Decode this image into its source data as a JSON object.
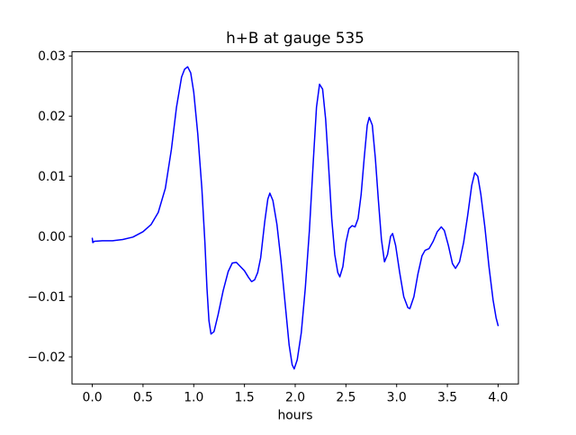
{
  "figure": {
    "background_color": "#ffffff",
    "axes_edge_color": "#000000",
    "text_color": "#000000"
  },
  "chart_data": {
    "type": "line",
    "title": "h+B at gauge 535",
    "xlabel": "hours",
    "ylabel": "",
    "grid": false,
    "legend": null,
    "xlim": [
      -0.2,
      4.2
    ],
    "ylim": [
      -0.0245,
      0.0307
    ],
    "xticks": [
      0.0,
      0.5,
      1.0,
      1.5,
      2.0,
      2.5,
      3.0,
      3.5,
      4.0
    ],
    "xtick_labels": [
      "0.0",
      "0.5",
      "1.0",
      "1.5",
      "2.0",
      "2.5",
      "3.0",
      "3.5",
      "4.0"
    ],
    "yticks": [
      -0.02,
      -0.01,
      0.0,
      0.01,
      0.02,
      0.03
    ],
    "ytick_labels": [
      "−0.02",
      "−0.01",
      "0.00",
      "0.01",
      "0.02",
      "0.03"
    ],
    "line_color": "#0000ff",
    "line_width": 1.5,
    "series": [
      {
        "name": "h+B",
        "x": [
          0.0,
          0.005,
          0.02,
          0.1,
          0.2,
          0.3,
          0.4,
          0.5,
          0.58,
          0.65,
          0.72,
          0.78,
          0.83,
          0.88,
          0.91,
          0.94,
          0.97,
          1.0,
          1.04,
          1.08,
          1.11,
          1.13,
          1.15,
          1.17,
          1.2,
          1.24,
          1.29,
          1.34,
          1.38,
          1.42,
          1.46,
          1.5,
          1.54,
          1.57,
          1.6,
          1.63,
          1.66,
          1.7,
          1.73,
          1.75,
          1.78,
          1.82,
          1.86,
          1.9,
          1.94,
          1.97,
          1.99,
          2.02,
          2.06,
          2.1,
          2.14,
          2.18,
          2.21,
          2.24,
          2.27,
          2.3,
          2.33,
          2.36,
          2.39,
          2.42,
          2.44,
          2.47,
          2.5,
          2.53,
          2.56,
          2.59,
          2.62,
          2.65,
          2.68,
          2.71,
          2.73,
          2.76,
          2.79,
          2.82,
          2.85,
          2.88,
          2.91,
          2.94,
          2.96,
          2.99,
          3.03,
          3.07,
          3.11,
          3.13,
          3.17,
          3.21,
          3.25,
          3.28,
          3.32,
          3.36,
          3.4,
          3.44,
          3.47,
          3.51,
          3.55,
          3.58,
          3.62,
          3.66,
          3.7,
          3.74,
          3.77,
          3.8,
          3.83,
          3.87,
          3.91,
          3.95,
          3.98,
          4.0
        ],
        "y": [
          -0.0003,
          -0.001,
          -0.0008,
          -0.0007,
          -0.0007,
          -0.0005,
          -0.0001,
          0.0008,
          0.002,
          0.004,
          0.008,
          0.0145,
          0.0215,
          0.0265,
          0.0278,
          0.0282,
          0.0272,
          0.024,
          0.017,
          0.008,
          -0.001,
          -0.0085,
          -0.014,
          -0.0162,
          -0.0158,
          -0.013,
          -0.009,
          -0.0058,
          -0.0044,
          -0.0043,
          -0.005,
          -0.0057,
          -0.0068,
          -0.0075,
          -0.0072,
          -0.006,
          -0.0035,
          0.0025,
          0.0062,
          0.0072,
          0.006,
          0.002,
          -0.004,
          -0.011,
          -0.018,
          -0.0213,
          -0.022,
          -0.0205,
          -0.016,
          -0.0085,
          0.001,
          0.013,
          0.0215,
          0.0253,
          0.0245,
          0.0195,
          0.0115,
          0.003,
          -0.003,
          -0.006,
          -0.0067,
          -0.005,
          -0.001,
          0.0013,
          0.0018,
          0.0016,
          0.003,
          0.007,
          0.013,
          0.0185,
          0.0198,
          0.0185,
          0.013,
          0.006,
          -0.0005,
          -0.0042,
          -0.003,
          0.0,
          0.0005,
          -0.0015,
          -0.006,
          -0.01,
          -0.0118,
          -0.012,
          -0.01,
          -0.0062,
          -0.0032,
          -0.0023,
          -0.002,
          -0.0008,
          0.0008,
          0.0016,
          0.001,
          -0.0015,
          -0.0045,
          -0.0053,
          -0.0042,
          -0.001,
          0.0035,
          0.0085,
          0.0106,
          0.01,
          0.007,
          0.0015,
          -0.005,
          -0.0105,
          -0.0135,
          -0.0148
        ]
      }
    ]
  }
}
